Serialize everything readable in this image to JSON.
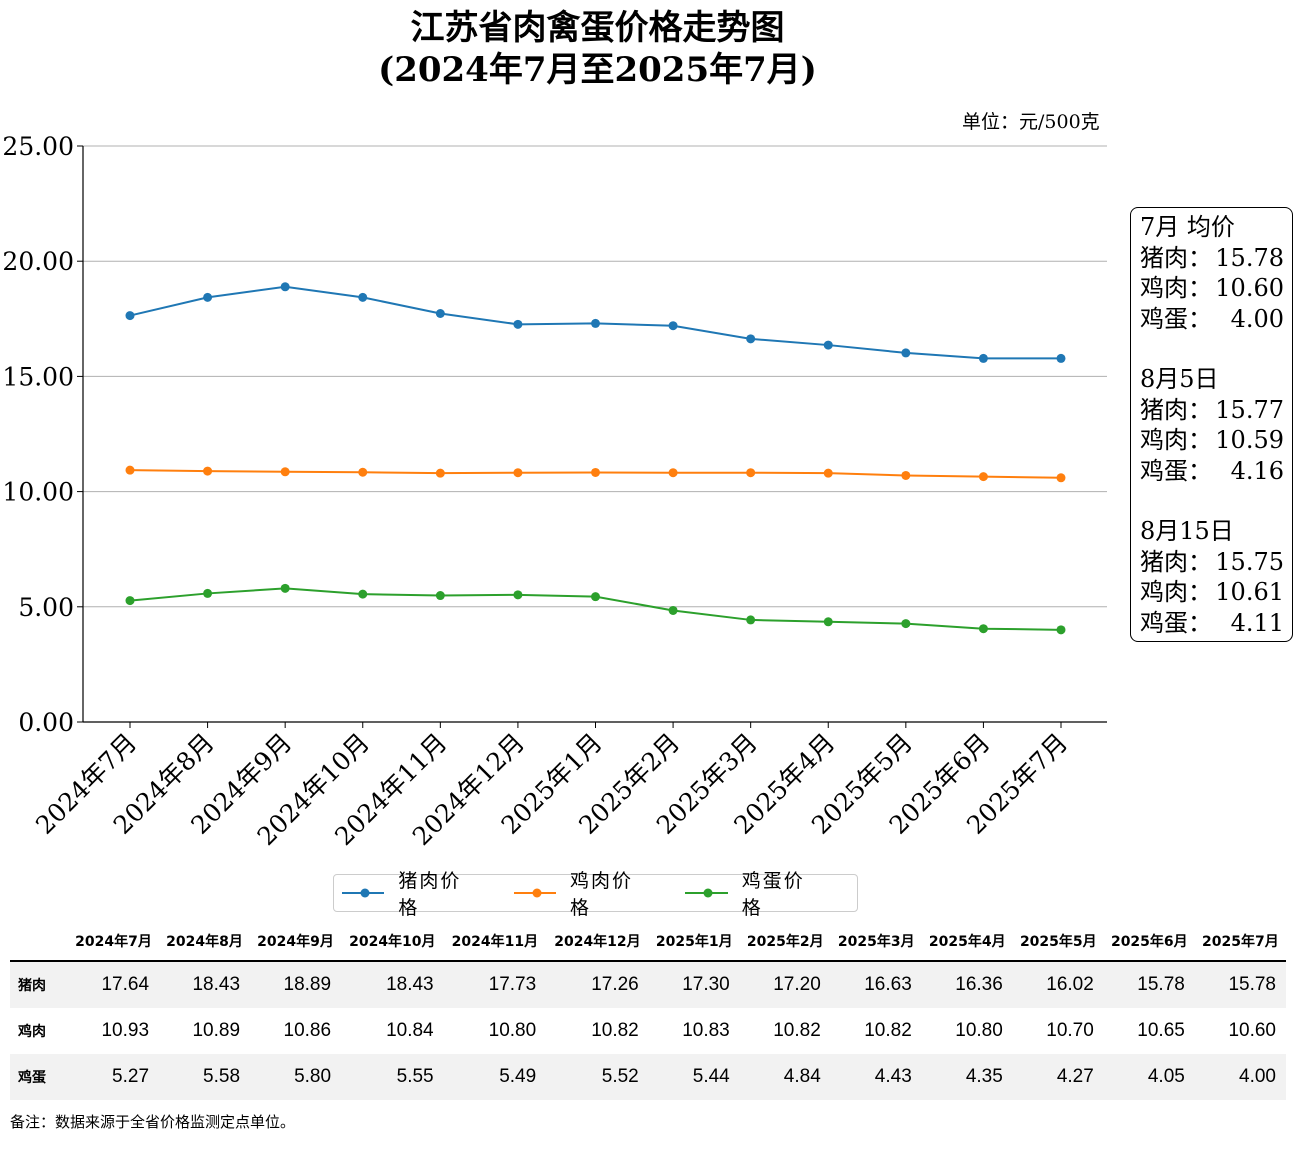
{
  "title_line1": "江苏省肉禽蛋价格走势图",
  "title_line2": "(2024年7月至2025年7月)",
  "unit": "单位：元/500克",
  "colors": {
    "pork": "#1f77b4",
    "chicken": "#ff7f0e",
    "egg": "#2ca02c"
  },
  "chart_data": {
    "type": "line",
    "categories": [
      "2024年7月",
      "2024年8月",
      "2024年9月",
      "2024年10月",
      "2024年11月",
      "2024年12月",
      "2025年1月",
      "2025年2月",
      "2025年3月",
      "2025年4月",
      "2025年5月",
      "2025年6月",
      "2025年7月"
    ],
    "series": [
      {
        "name": "猪肉价格",
        "values": [
          17.64,
          18.43,
          18.89,
          18.43,
          17.73,
          17.26,
          17.3,
          17.2,
          16.63,
          16.36,
          16.02,
          15.78,
          15.78
        ]
      },
      {
        "name": "鸡肉价格",
        "values": [
          10.93,
          10.89,
          10.86,
          10.84,
          10.8,
          10.82,
          10.83,
          10.82,
          10.82,
          10.8,
          10.7,
          10.65,
          10.6
        ]
      },
      {
        "name": "鸡蛋价格",
        "values": [
          5.27,
          5.58,
          5.8,
          5.55,
          5.49,
          5.52,
          5.44,
          4.84,
          4.43,
          4.35,
          4.27,
          4.05,
          4.0
        ]
      }
    ],
    "ylim": [
      0,
      25
    ],
    "yticks": [
      "0.00",
      "5.00",
      "10.00",
      "15.00",
      "20.00",
      "25.00"
    ],
    "grid": "horizontal",
    "legend_position": "bottom-center"
  },
  "info_box": [
    {
      "heading": "7月 均价",
      "rows": [
        [
          "猪肉：",
          "15.78"
        ],
        [
          "鸡肉：",
          "10.60"
        ],
        [
          "鸡蛋：",
          "4.00"
        ]
      ]
    },
    {
      "heading": "8月5日",
      "rows": [
        [
          "猪肉：",
          "15.77"
        ],
        [
          "鸡肉：",
          "10.59"
        ],
        [
          "鸡蛋：",
          "4.16"
        ]
      ]
    },
    {
      "heading": "8月15日",
      "rows": [
        [
          "猪肉：",
          "15.75"
        ],
        [
          "鸡肉：",
          "10.61"
        ],
        [
          "鸡蛋：",
          "4.11"
        ]
      ]
    }
  ],
  "table": {
    "headers": [
      "",
      "2024年7月",
      "2024年8月",
      "2024年9月",
      "2024年10月",
      "2024年11月",
      "2024年12月",
      "2025年1月",
      "2025年2月",
      "2025年3月",
      "2025年4月",
      "2025年5月",
      "2025年6月",
      "2025年7月"
    ],
    "rows": [
      [
        "猪肉",
        "17.64",
        "18.43",
        "18.89",
        "18.43",
        "17.73",
        "17.26",
        "17.30",
        "17.20",
        "16.63",
        "16.36",
        "16.02",
        "15.78",
        "15.78"
      ],
      [
        "鸡肉",
        "10.93",
        "10.89",
        "10.86",
        "10.84",
        "10.80",
        "10.82",
        "10.83",
        "10.82",
        "10.82",
        "10.80",
        "10.70",
        "10.65",
        "10.60"
      ],
      [
        "鸡蛋",
        "5.27",
        "5.58",
        "5.80",
        "5.55",
        "5.49",
        "5.52",
        "5.44",
        "4.84",
        "4.43",
        "4.35",
        "4.27",
        "4.05",
        "4.00"
      ]
    ]
  },
  "note": "备注：数据来源于全省价格监测定点单位。"
}
